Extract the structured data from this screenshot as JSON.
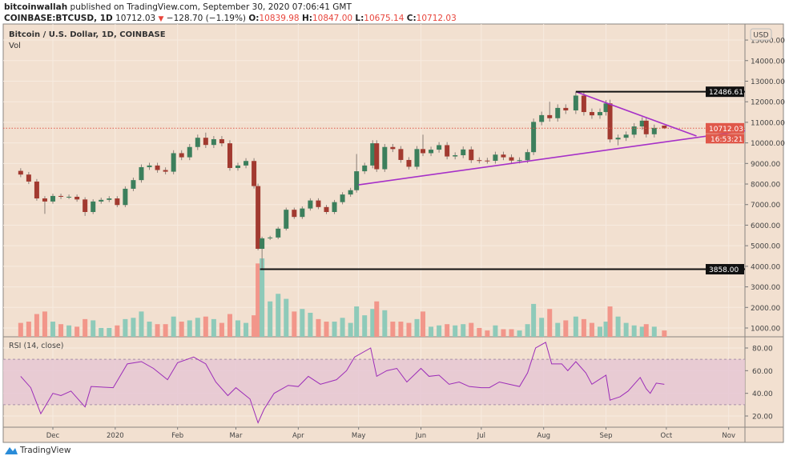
{
  "header": {
    "author": "bitcoinwallah",
    "published_text": "published on TradingView.com, September 30, 2020 07:06:41 GMT",
    "symbol": "COINBASE:BTCUSD, 1D",
    "last": "10712.03",
    "change": "−128.70 (−1.19%)",
    "o_label": "O:",
    "o": "10839.98",
    "h_label": "H:",
    "h": "10847.00",
    "l_label": "L:",
    "l": "10675.14",
    "c_label": "C:",
    "c": "10712.03"
  },
  "legend": {
    "title": "Bitcoin / U.S. Dollar, 1D, COINBASE",
    "vol": "Vol"
  },
  "footer": {
    "brand": "TradingView"
  },
  "colors": {
    "background": "#f2e0d0",
    "up": "#3c7f5c",
    "down": "#a23a30",
    "vol_up": "#8ecab9",
    "vol_down": "#f2968a",
    "rsi": "#9c2cb8",
    "trendline": "#a630c8",
    "last_price": "#e0584a"
  },
  "chart_data": [
    {
      "type": "candlestick",
      "title": "Bitcoin / U.S. Dollar, 1D, COINBASE",
      "currency": "USD",
      "ylim": [
        0,
        15500
      ],
      "yticks": [
        "1000.00",
        "2000.00",
        "3000.00",
        "4000.00",
        "5000.00",
        "6000.00",
        "7000.00",
        "8000.00",
        "9000.00",
        "10000.00",
        "11000.00",
        "12000.00",
        "13000.00",
        "14000.00",
        "15000.00"
      ],
      "xticks": [
        {
          "label": "Dec",
          "date": "2019-12-01"
        },
        {
          "label": "2020",
          "date": "2020-01-01"
        },
        {
          "label": "Feb",
          "date": "2020-02-01"
        },
        {
          "label": "Mar",
          "date": "2020-03-01"
        },
        {
          "label": "Apr",
          "date": "2020-04-01"
        },
        {
          "label": "May",
          "date": "2020-05-01"
        },
        {
          "label": "Jun",
          "date": "2020-06-01"
        },
        {
          "label": "Jul",
          "date": "2020-07-01"
        },
        {
          "label": "Aug",
          "date": "2020-08-01"
        },
        {
          "label": "Sep",
          "date": "2020-09-01"
        },
        {
          "label": "Oct",
          "date": "2020-10-01"
        },
        {
          "label": "Nov",
          "date": "2020-11-01"
        }
      ],
      "candles": [
        {
          "d": "2019-11-15",
          "o": 8640,
          "c": 8460,
          "v": 11000
        },
        {
          "d": "2019-11-19",
          "c": 8120,
          "v": 12000
        },
        {
          "d": "2019-11-23",
          "c": 7300,
          "v": 18000
        },
        {
          "d": "2019-11-27",
          "c": 7150,
          "l": 6550,
          "v": 20000
        },
        {
          "d": "2019-12-01",
          "c": 7420,
          "v": 12000
        },
        {
          "d": "2019-12-05",
          "c": 7380,
          "v": 10000
        },
        {
          "d": "2019-12-09",
          "c": 7380,
          "v": 9000
        },
        {
          "d": "2019-12-13",
          "c": 7250,
          "v": 8000
        },
        {
          "d": "2019-12-17",
          "c": 6640,
          "l": 6450,
          "v": 14000
        },
        {
          "d": "2019-12-21",
          "c": 7150,
          "v": 13000
        },
        {
          "d": "2019-12-25",
          "c": 7230,
          "v": 7000
        },
        {
          "d": "2019-12-29",
          "c": 7300,
          "v": 7000
        },
        {
          "d": "2020-01-02",
          "c": 6980,
          "v": 9000
        },
        {
          "d": "2020-01-06",
          "c": 7770,
          "v": 14000
        },
        {
          "d": "2020-01-10",
          "c": 8190,
          "v": 15000
        },
        {
          "d": "2020-01-14",
          "c": 8820,
          "v": 20000
        },
        {
          "d": "2020-01-18",
          "c": 8900,
          "v": 12000
        },
        {
          "d": "2020-01-22",
          "c": 8680,
          "v": 10000
        },
        {
          "d": "2020-01-26",
          "c": 8600,
          "v": 10000
        },
        {
          "d": "2020-01-30",
          "c": 9500,
          "v": 16000
        },
        {
          "d": "2020-02-03",
          "c": 9300,
          "v": 12000
        },
        {
          "d": "2020-02-07",
          "c": 9800,
          "v": 13000
        },
        {
          "d": "2020-02-11",
          "c": 10250,
          "v": 15000
        },
        {
          "d": "2020-02-15",
          "c": 9900,
          "h": 10500,
          "v": 16000
        },
        {
          "d": "2020-02-19",
          "c": 10180,
          "v": 14000
        },
        {
          "d": "2020-02-23",
          "c": 9980,
          "v": 11000
        },
        {
          "d": "2020-02-27",
          "c": 8780,
          "v": 18000
        },
        {
          "d": "2020-03-02",
          "c": 8900,
          "v": 13000
        },
        {
          "d": "2020-03-06",
          "c": 9120,
          "v": 11000
        },
        {
          "d": "2020-03-10",
          "c": 7900,
          "v": 17000
        },
        {
          "d": "2020-03-12",
          "c": 4850,
          "v": 58000
        },
        {
          "d": "2020-03-14",
          "c": 5360,
          "l": 3858,
          "v": 62000
        },
        {
          "d": "2020-03-18",
          "c": 5400,
          "v": 28000
        },
        {
          "d": "2020-03-22",
          "c": 5830,
          "v": 34000
        },
        {
          "d": "2020-03-26",
          "c": 6750,
          "v": 30000
        },
        {
          "d": "2020-03-30",
          "c": 6400,
          "v": 20000
        },
        {
          "d": "2020-04-03",
          "c": 6810,
          "v": 22000
        },
        {
          "d": "2020-04-07",
          "c": 7200,
          "v": 19000
        },
        {
          "d": "2020-04-11",
          "c": 6880,
          "v": 14000
        },
        {
          "d": "2020-04-15",
          "c": 6640,
          "v": 12000
        },
        {
          "d": "2020-04-19",
          "c": 7120,
          "v": 12000
        },
        {
          "d": "2020-04-23",
          "c": 7490,
          "v": 15000
        },
        {
          "d": "2020-04-27",
          "c": 7700,
          "v": 11000
        },
        {
          "d": "2020-04-30",
          "c": 8620,
          "h": 9460,
          "v": 24000
        },
        {
          "d": "2020-05-04",
          "c": 8900,
          "v": 17000
        },
        {
          "d": "2020-05-08",
          "c": 9980,
          "v": 22000
        },
        {
          "d": "2020-05-10",
          "c": 8720,
          "v": 28000
        },
        {
          "d": "2020-05-14",
          "c": 9800,
          "v": 21000
        },
        {
          "d": "2020-05-18",
          "c": 9700,
          "v": 12000
        },
        {
          "d": "2020-05-22",
          "c": 9170,
          "v": 12000
        },
        {
          "d": "2020-05-26",
          "c": 8840,
          "v": 11000
        },
        {
          "d": "2020-05-30",
          "c": 9700,
          "v": 14000
        },
        {
          "d": "2020-06-02",
          "c": 9500,
          "h": 10400,
          "v": 20000
        },
        {
          "d": "2020-06-06",
          "c": 9670,
          "v": 8000
        },
        {
          "d": "2020-06-10",
          "c": 9890,
          "v": 9000
        },
        {
          "d": "2020-06-14",
          "c": 9340,
          "v": 10000
        },
        {
          "d": "2020-06-18",
          "c": 9400,
          "v": 9000
        },
        {
          "d": "2020-06-22",
          "c": 9680,
          "v": 10000
        },
        {
          "d": "2020-06-26",
          "c": 9160,
          "v": 11000
        },
        {
          "d": "2020-06-30",
          "c": 9140,
          "v": 7000
        },
        {
          "d": "2020-07-04",
          "c": 9130,
          "v": 5000
        },
        {
          "d": "2020-07-08",
          "c": 9430,
          "v": 9000
        },
        {
          "d": "2020-07-12",
          "c": 9300,
          "v": 6000
        },
        {
          "d": "2020-07-16",
          "c": 9140,
          "v": 6000
        },
        {
          "d": "2020-07-20",
          "c": 9160,
          "v": 5000
        },
        {
          "d": "2020-07-24",
          "c": 9550,
          "v": 10000
        },
        {
          "d": "2020-07-27",
          "c": 11020,
          "v": 26000
        },
        {
          "d": "2020-07-31",
          "c": 11350,
          "v": 15000
        },
        {
          "d": "2020-08-04",
          "c": 11200,
          "h": 12000,
          "v": 22000
        },
        {
          "d": "2020-08-08",
          "c": 11700,
          "v": 11000
        },
        {
          "d": "2020-08-12",
          "c": 11580,
          "v": 13000
        },
        {
          "d": "2020-08-17",
          "c": 12300,
          "h": 12486.61,
          "v": 16000
        },
        {
          "d": "2020-08-21",
          "c": 11500,
          "v": 14000
        },
        {
          "d": "2020-08-25",
          "c": 11340,
          "v": 11000
        },
        {
          "d": "2020-08-29",
          "c": 11500,
          "v": 8000
        },
        {
          "d": "2020-09-01",
          "c": 11920,
          "h": 12080,
          "v": 12000
        },
        {
          "d": "2020-09-03",
          "c": 10170,
          "v": 24000
        },
        {
          "d": "2020-09-07",
          "c": 10250,
          "l": 9880,
          "v": 16000
        },
        {
          "d": "2020-09-11",
          "c": 10400,
          "v": 11000
        },
        {
          "d": "2020-09-15",
          "c": 10800,
          "v": 9000
        },
        {
          "d": "2020-09-19",
          "c": 11080,
          "v": 8000
        },
        {
          "d": "2020-09-21",
          "c": 10420,
          "v": 10000
        },
        {
          "d": "2020-09-25",
          "c": 10730,
          "v": 8000
        },
        {
          "d": "2020-09-30",
          "o": 10839.98,
          "h": 10847.0,
          "l": 10675.14,
          "c": 10712.03,
          "v": 5000
        }
      ],
      "levels": [
        {
          "label": "12486.61",
          "price": 12486.61,
          "from": "2020-08-17",
          "style": "black"
        },
        {
          "label": "3858.00",
          "price": 3858,
          "from": "2020-03-13",
          "style": "black"
        }
      ],
      "trendlines": [
        {
          "from": {
            "d": "2020-05-01",
            "p": 7960
          },
          "to": {
            "d": "2020-11-18",
            "p": 10712
          }
        },
        {
          "from": {
            "d": "2020-08-17",
            "p": 12486.61
          },
          "to": {
            "d": "2020-10-16",
            "p": 10335
          }
        }
      ],
      "last_price": {
        "label": "10712.03",
        "price": 10712.03,
        "countdown": "16:53:21"
      }
    },
    {
      "type": "line",
      "title": "RSI (14, close)",
      "ylim": [
        10,
        88
      ],
      "yticks": [
        "20.00",
        "40.00",
        "60.00",
        "80.00"
      ],
      "band": [
        30,
        70
      ],
      "x": [
        "2019-11-15",
        "2019-11-20",
        "2019-11-25",
        "2019-12-01",
        "2019-12-05",
        "2019-12-10",
        "2019-12-17",
        "2019-12-20",
        "2019-12-31",
        "2020-01-07",
        "2020-01-14",
        "2020-01-20",
        "2020-01-27",
        "2020-02-01",
        "2020-02-09",
        "2020-02-15",
        "2020-02-20",
        "2020-02-26",
        "2020-03-01",
        "2020-03-08",
        "2020-03-12",
        "2020-03-15",
        "2020-03-20",
        "2020-03-27",
        "2020-04-01",
        "2020-04-06",
        "2020-04-12",
        "2020-04-20",
        "2020-04-25",
        "2020-04-29",
        "2020-05-07",
        "2020-05-10",
        "2020-05-15",
        "2020-05-20",
        "2020-05-25",
        "2020-06-01",
        "2020-06-05",
        "2020-06-10",
        "2020-06-15",
        "2020-06-20",
        "2020-06-25",
        "2020-07-01",
        "2020-07-05",
        "2020-07-10",
        "2020-07-15",
        "2020-07-20",
        "2020-07-24",
        "2020-07-28",
        "2020-08-02",
        "2020-08-05",
        "2020-08-10",
        "2020-08-13",
        "2020-08-17",
        "2020-08-22",
        "2020-08-25",
        "2020-09-01",
        "2020-09-03",
        "2020-09-08",
        "2020-09-12",
        "2020-09-18",
        "2020-09-21",
        "2020-09-23",
        "2020-09-26",
        "2020-09-30"
      ],
      "values": [
        55,
        45,
        22,
        40,
        38,
        42,
        28,
        46,
        45,
        66,
        68,
        62,
        52,
        67,
        72,
        66,
        50,
        38,
        45,
        35,
        14,
        26,
        40,
        47,
        46,
        55,
        48,
        52,
        60,
        72,
        80,
        55,
        60,
        62,
        50,
        62,
        55,
        56,
        48,
        50,
        46,
        45,
        45,
        50,
        48,
        46,
        58,
        80,
        85,
        66,
        66,
        60,
        68,
        58,
        48,
        56,
        34,
        37,
        42,
        54,
        44,
        40,
        49,
        48
      ]
    }
  ]
}
